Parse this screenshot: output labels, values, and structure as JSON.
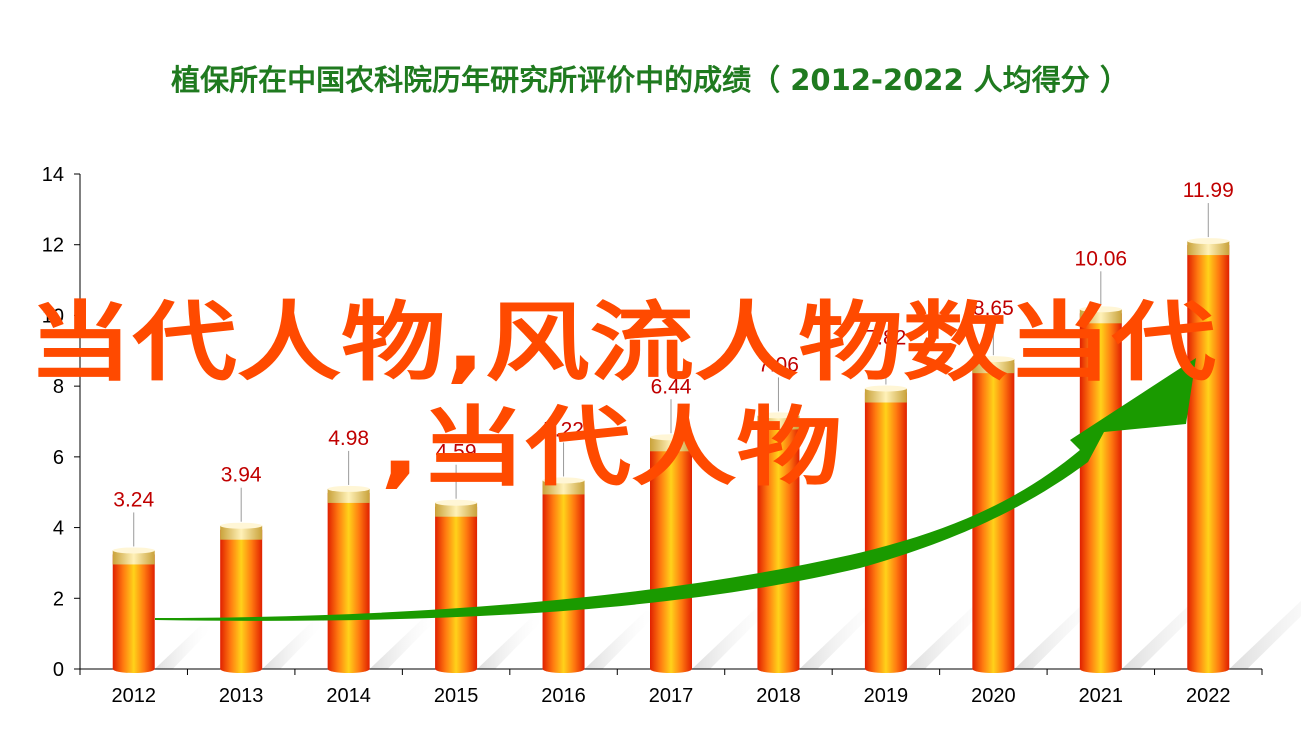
{
  "colors": {
    "title": "#1f7a1f",
    "bar_light": "#ffd21a",
    "bar_mid": "#ff7a10",
    "bar_dark": "#e02000",
    "cap": "#f3d77a",
    "data_label": "#c00000",
    "trend_arrow": "#1a9a00",
    "watermark": "#ff4a00"
  },
  "watermark": {
    "line1": "当代人物,风流人物数当代",
    "line2": ",当代人物"
  },
  "chart_data": {
    "type": "bar",
    "title": "植保所在中国农科院历年研究所评价中的成绩（ 2012-2022  人均得分 ）",
    "xlabel": "",
    "ylabel": "",
    "categories": [
      "2012",
      "2013",
      "2014",
      "2015",
      "2016",
      "2017",
      "2018",
      "2019",
      "2020",
      "2021",
      "2022"
    ],
    "values": [
      3.24,
      3.94,
      4.98,
      4.59,
      5.22,
      6.44,
      7.06,
      7.82,
      8.65,
      10.06,
      11.99
    ],
    "data_labels": [
      "3.24",
      "3.94",
      "4.98",
      "4.59",
      "5.22",
      "6.44",
      "7.06",
      "7.82",
      "8.65",
      "10.06",
      "11.99"
    ],
    "ylim": [
      0,
      14
    ],
    "yticks": [
      "0",
      "2",
      "4",
      "6",
      "8",
      "10",
      "12",
      "14"
    ],
    "grid": false,
    "legend": "none",
    "annotation": "green upward trend arrow"
  }
}
